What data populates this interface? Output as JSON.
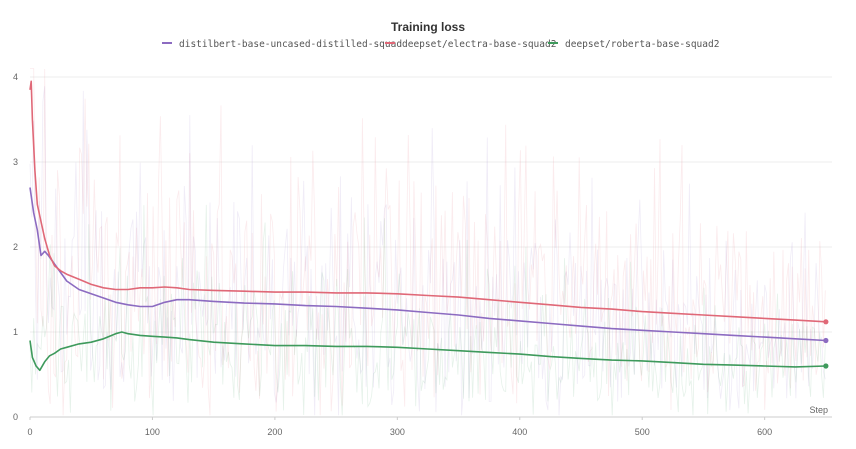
{
  "chart_data": {
    "type": "line",
    "title": "Training loss",
    "xlabel": "Step",
    "ylabel": "",
    "xlim": [
      0,
      655
    ],
    "ylim": [
      0,
      4.2
    ],
    "x_ticks": [
      0,
      100,
      200,
      300,
      400,
      500,
      600
    ],
    "y_ticks": [
      0,
      1,
      2,
      3,
      4
    ],
    "grid": true,
    "legend_position": "top-center",
    "series": [
      {
        "name": "distilbert-base-uncased-distilled-squad",
        "color": "#8c6bc1",
        "x": [
          0,
          3,
          6,
          9,
          12,
          15,
          20,
          25,
          30,
          40,
          50,
          60,
          70,
          80,
          90,
          100,
          110,
          120,
          130,
          150,
          175,
          200,
          225,
          250,
          275,
          300,
          325,
          350,
          375,
          400,
          425,
          450,
          475,
          500,
          525,
          550,
          575,
          600,
          625,
          650
        ],
        "values": [
          2.7,
          2.4,
          2.2,
          1.9,
          1.95,
          1.9,
          1.8,
          1.7,
          1.6,
          1.5,
          1.45,
          1.4,
          1.35,
          1.32,
          1.3,
          1.3,
          1.35,
          1.38,
          1.38,
          1.36,
          1.34,
          1.33,
          1.31,
          1.3,
          1.28,
          1.26,
          1.23,
          1.2,
          1.16,
          1.13,
          1.1,
          1.07,
          1.04,
          1.02,
          1.0,
          0.98,
          0.96,
          0.94,
          0.92,
          0.9
        ]
      },
      {
        "name": "deepset/electra-base-squad2",
        "color": "#e06877",
        "x": [
          0,
          1,
          2,
          4,
          6,
          9,
          12,
          16,
          20,
          25,
          30,
          40,
          50,
          60,
          70,
          80,
          90,
          100,
          110,
          120,
          130,
          150,
          175,
          200,
          225,
          250,
          275,
          300,
          325,
          350,
          375,
          400,
          425,
          450,
          475,
          500,
          525,
          550,
          575,
          600,
          625,
          650
        ],
        "values": [
          3.85,
          3.95,
          3.5,
          2.9,
          2.5,
          2.3,
          2.1,
          1.9,
          1.78,
          1.72,
          1.68,
          1.62,
          1.56,
          1.52,
          1.5,
          1.5,
          1.52,
          1.52,
          1.53,
          1.52,
          1.5,
          1.49,
          1.48,
          1.47,
          1.47,
          1.46,
          1.46,
          1.45,
          1.43,
          1.41,
          1.38,
          1.35,
          1.32,
          1.29,
          1.27,
          1.24,
          1.22,
          1.2,
          1.18,
          1.16,
          1.14,
          1.12
        ]
      },
      {
        "name": "deepset/roberta-base-squad2",
        "color": "#3e9a5c",
        "x": [
          0,
          2,
          5,
          8,
          12,
          16,
          20,
          25,
          30,
          40,
          50,
          60,
          70,
          75,
          80,
          90,
          100,
          110,
          120,
          130,
          150,
          175,
          200,
          225,
          250,
          275,
          300,
          325,
          350,
          375,
          400,
          425,
          450,
          475,
          500,
          525,
          550,
          575,
          600,
          625,
          650
        ],
        "values": [
          0.9,
          0.7,
          0.6,
          0.55,
          0.65,
          0.72,
          0.75,
          0.8,
          0.82,
          0.86,
          0.88,
          0.92,
          0.98,
          1.0,
          0.98,
          0.96,
          0.95,
          0.94,
          0.93,
          0.91,
          0.88,
          0.86,
          0.84,
          0.84,
          0.83,
          0.83,
          0.82,
          0.8,
          0.78,
          0.76,
          0.74,
          0.71,
          0.69,
          0.67,
          0.66,
          0.64,
          0.62,
          0.61,
          0.6,
          0.59,
          0.6
        ]
      }
    ]
  }
}
